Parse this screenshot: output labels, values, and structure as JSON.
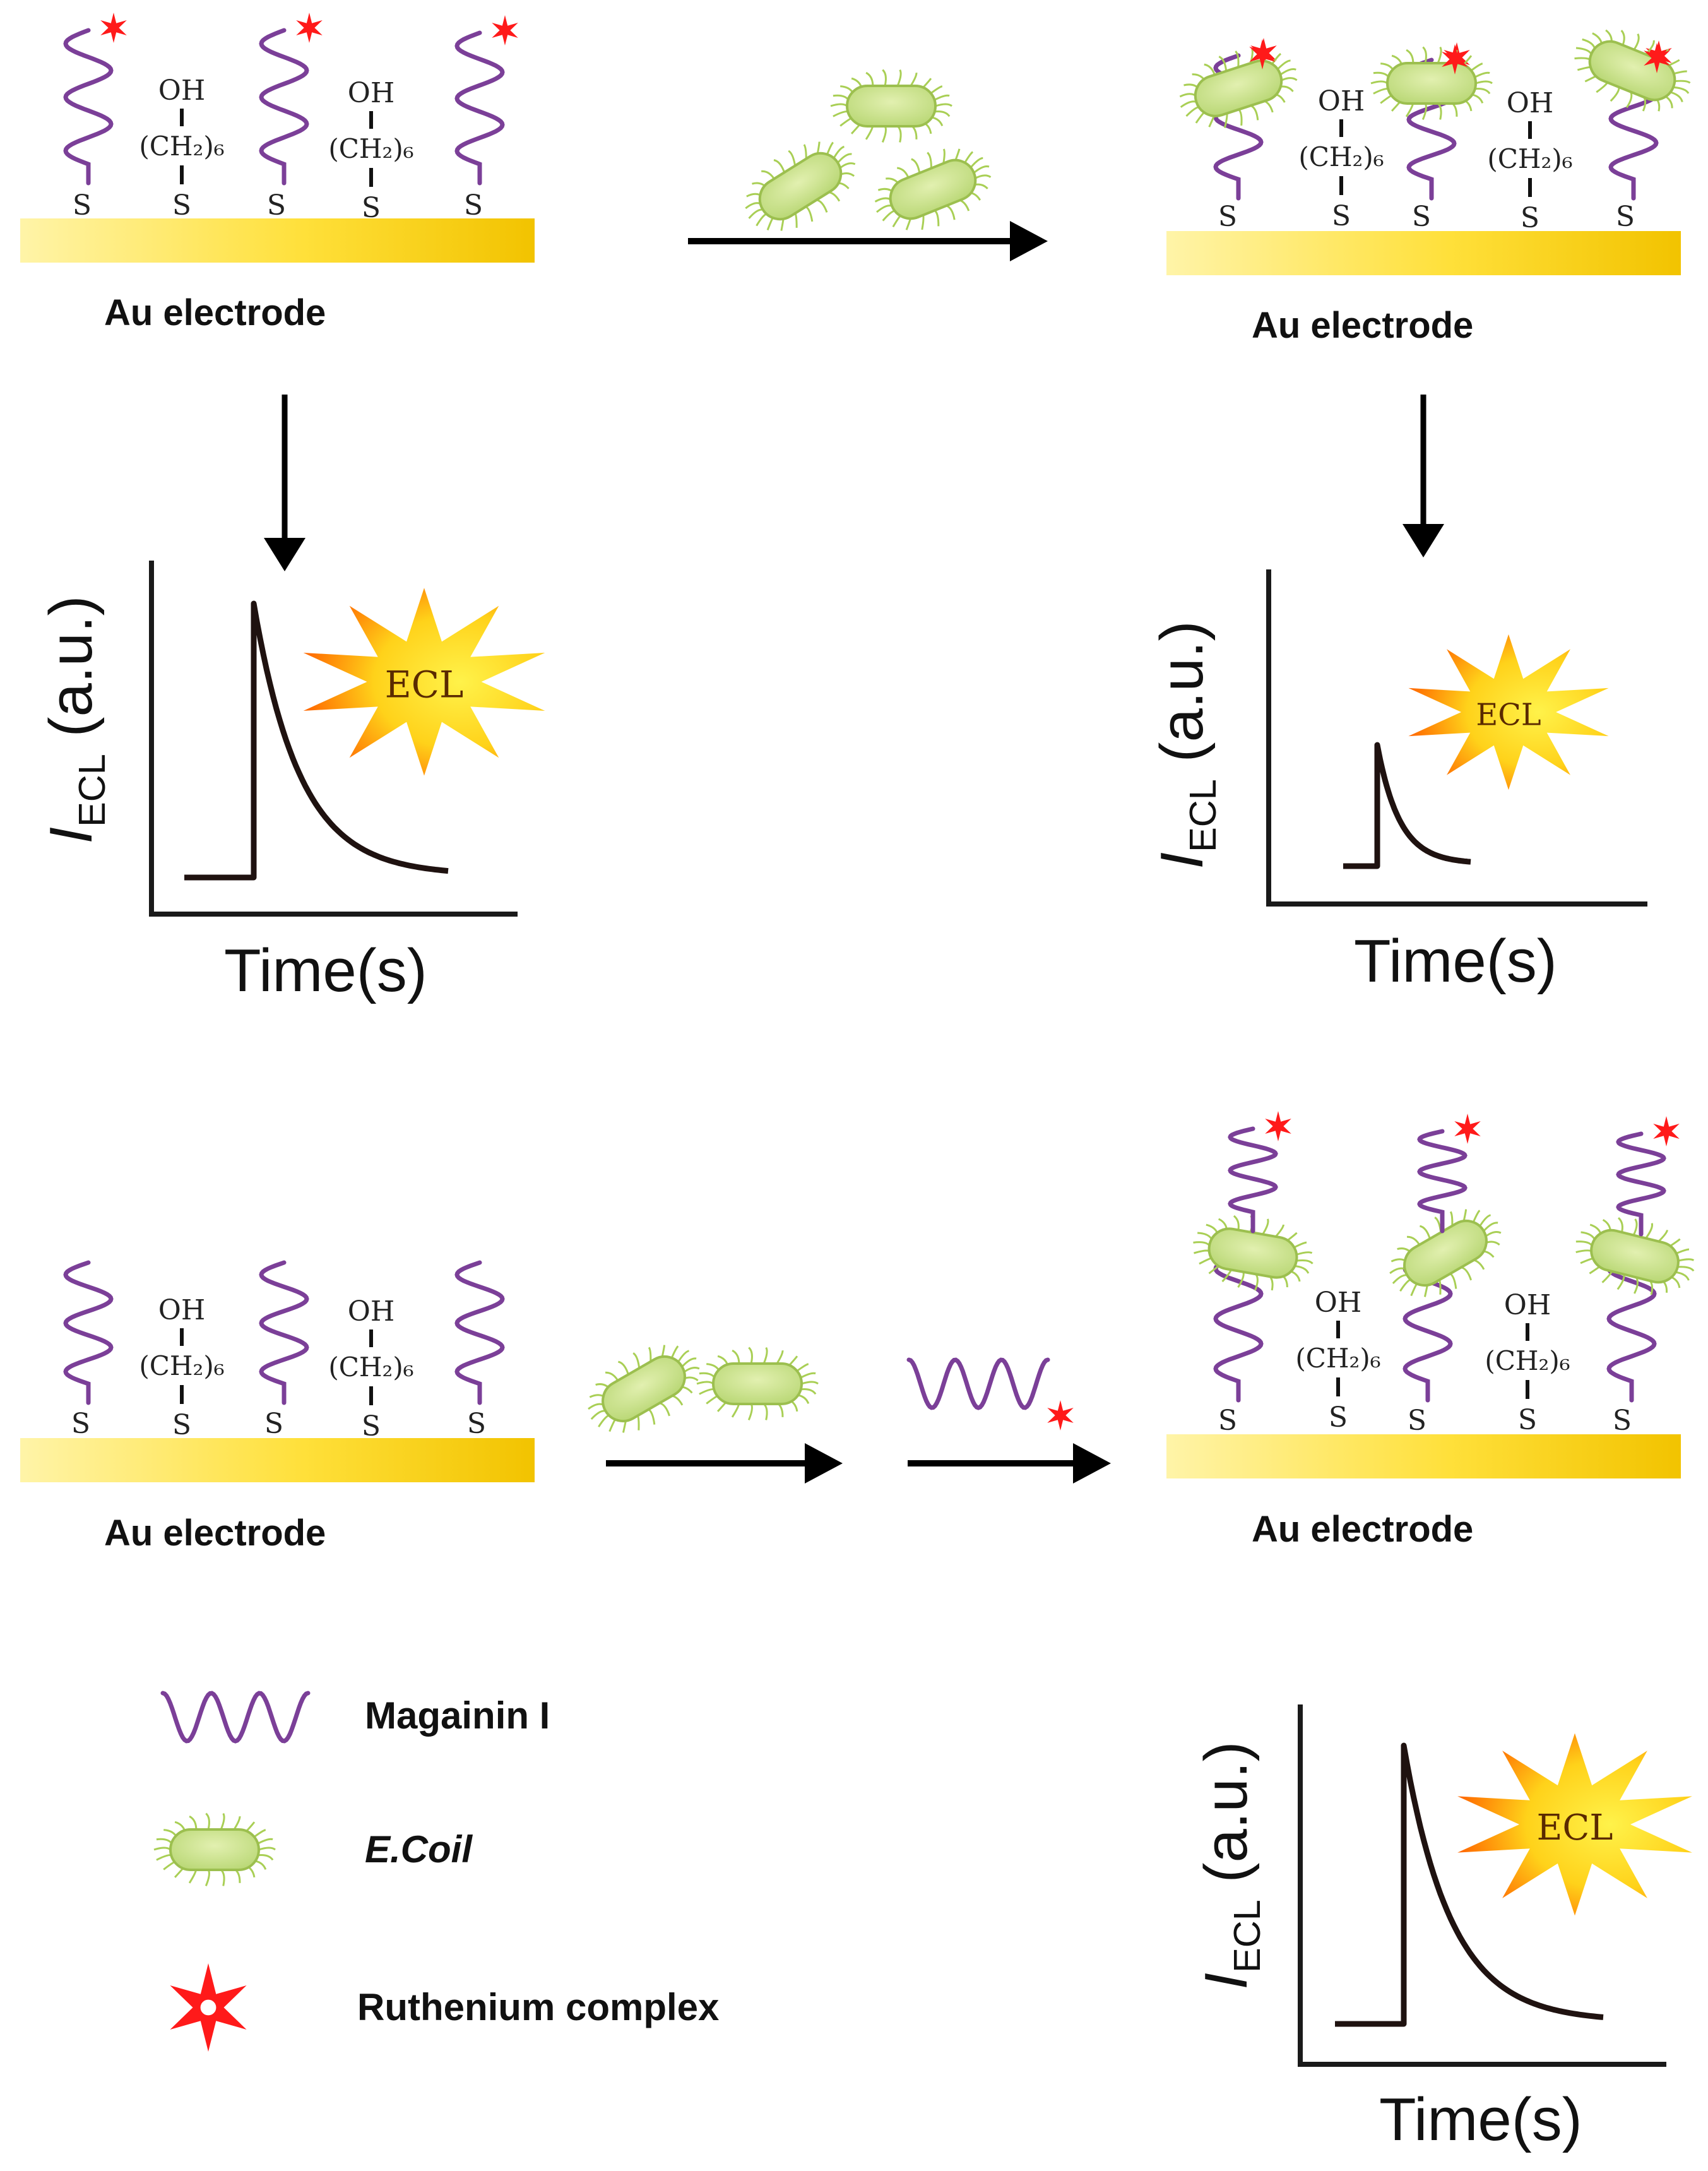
{
  "electrode_label": "Au electrode",
  "chem": {
    "oh": "OH",
    "ch2": "(CH₂)₆",
    "s": "S"
  },
  "ecl_badge": "ECL",
  "axis": {
    "y_main": "I",
    "y_sub": "ECL",
    "y_unit": "(a.u.)",
    "x": "Time(s)"
  },
  "legend": {
    "magainin": "Magainin I",
    "ecoli": "E.Coil",
    "ruthenium": "Ruthenium complex"
  },
  "colors": {
    "gold_light": "#fff6a0",
    "gold_dark": "#f2c200",
    "peptide": "#7b3f98",
    "bacteria": "#c8e08a",
    "bacteria_edge": "#9cbf4f",
    "ruthenium": "#ff1a1a",
    "ecl_star_outer": "#ff7a00",
    "ecl_star_inner": "#ffe11a"
  }
}
